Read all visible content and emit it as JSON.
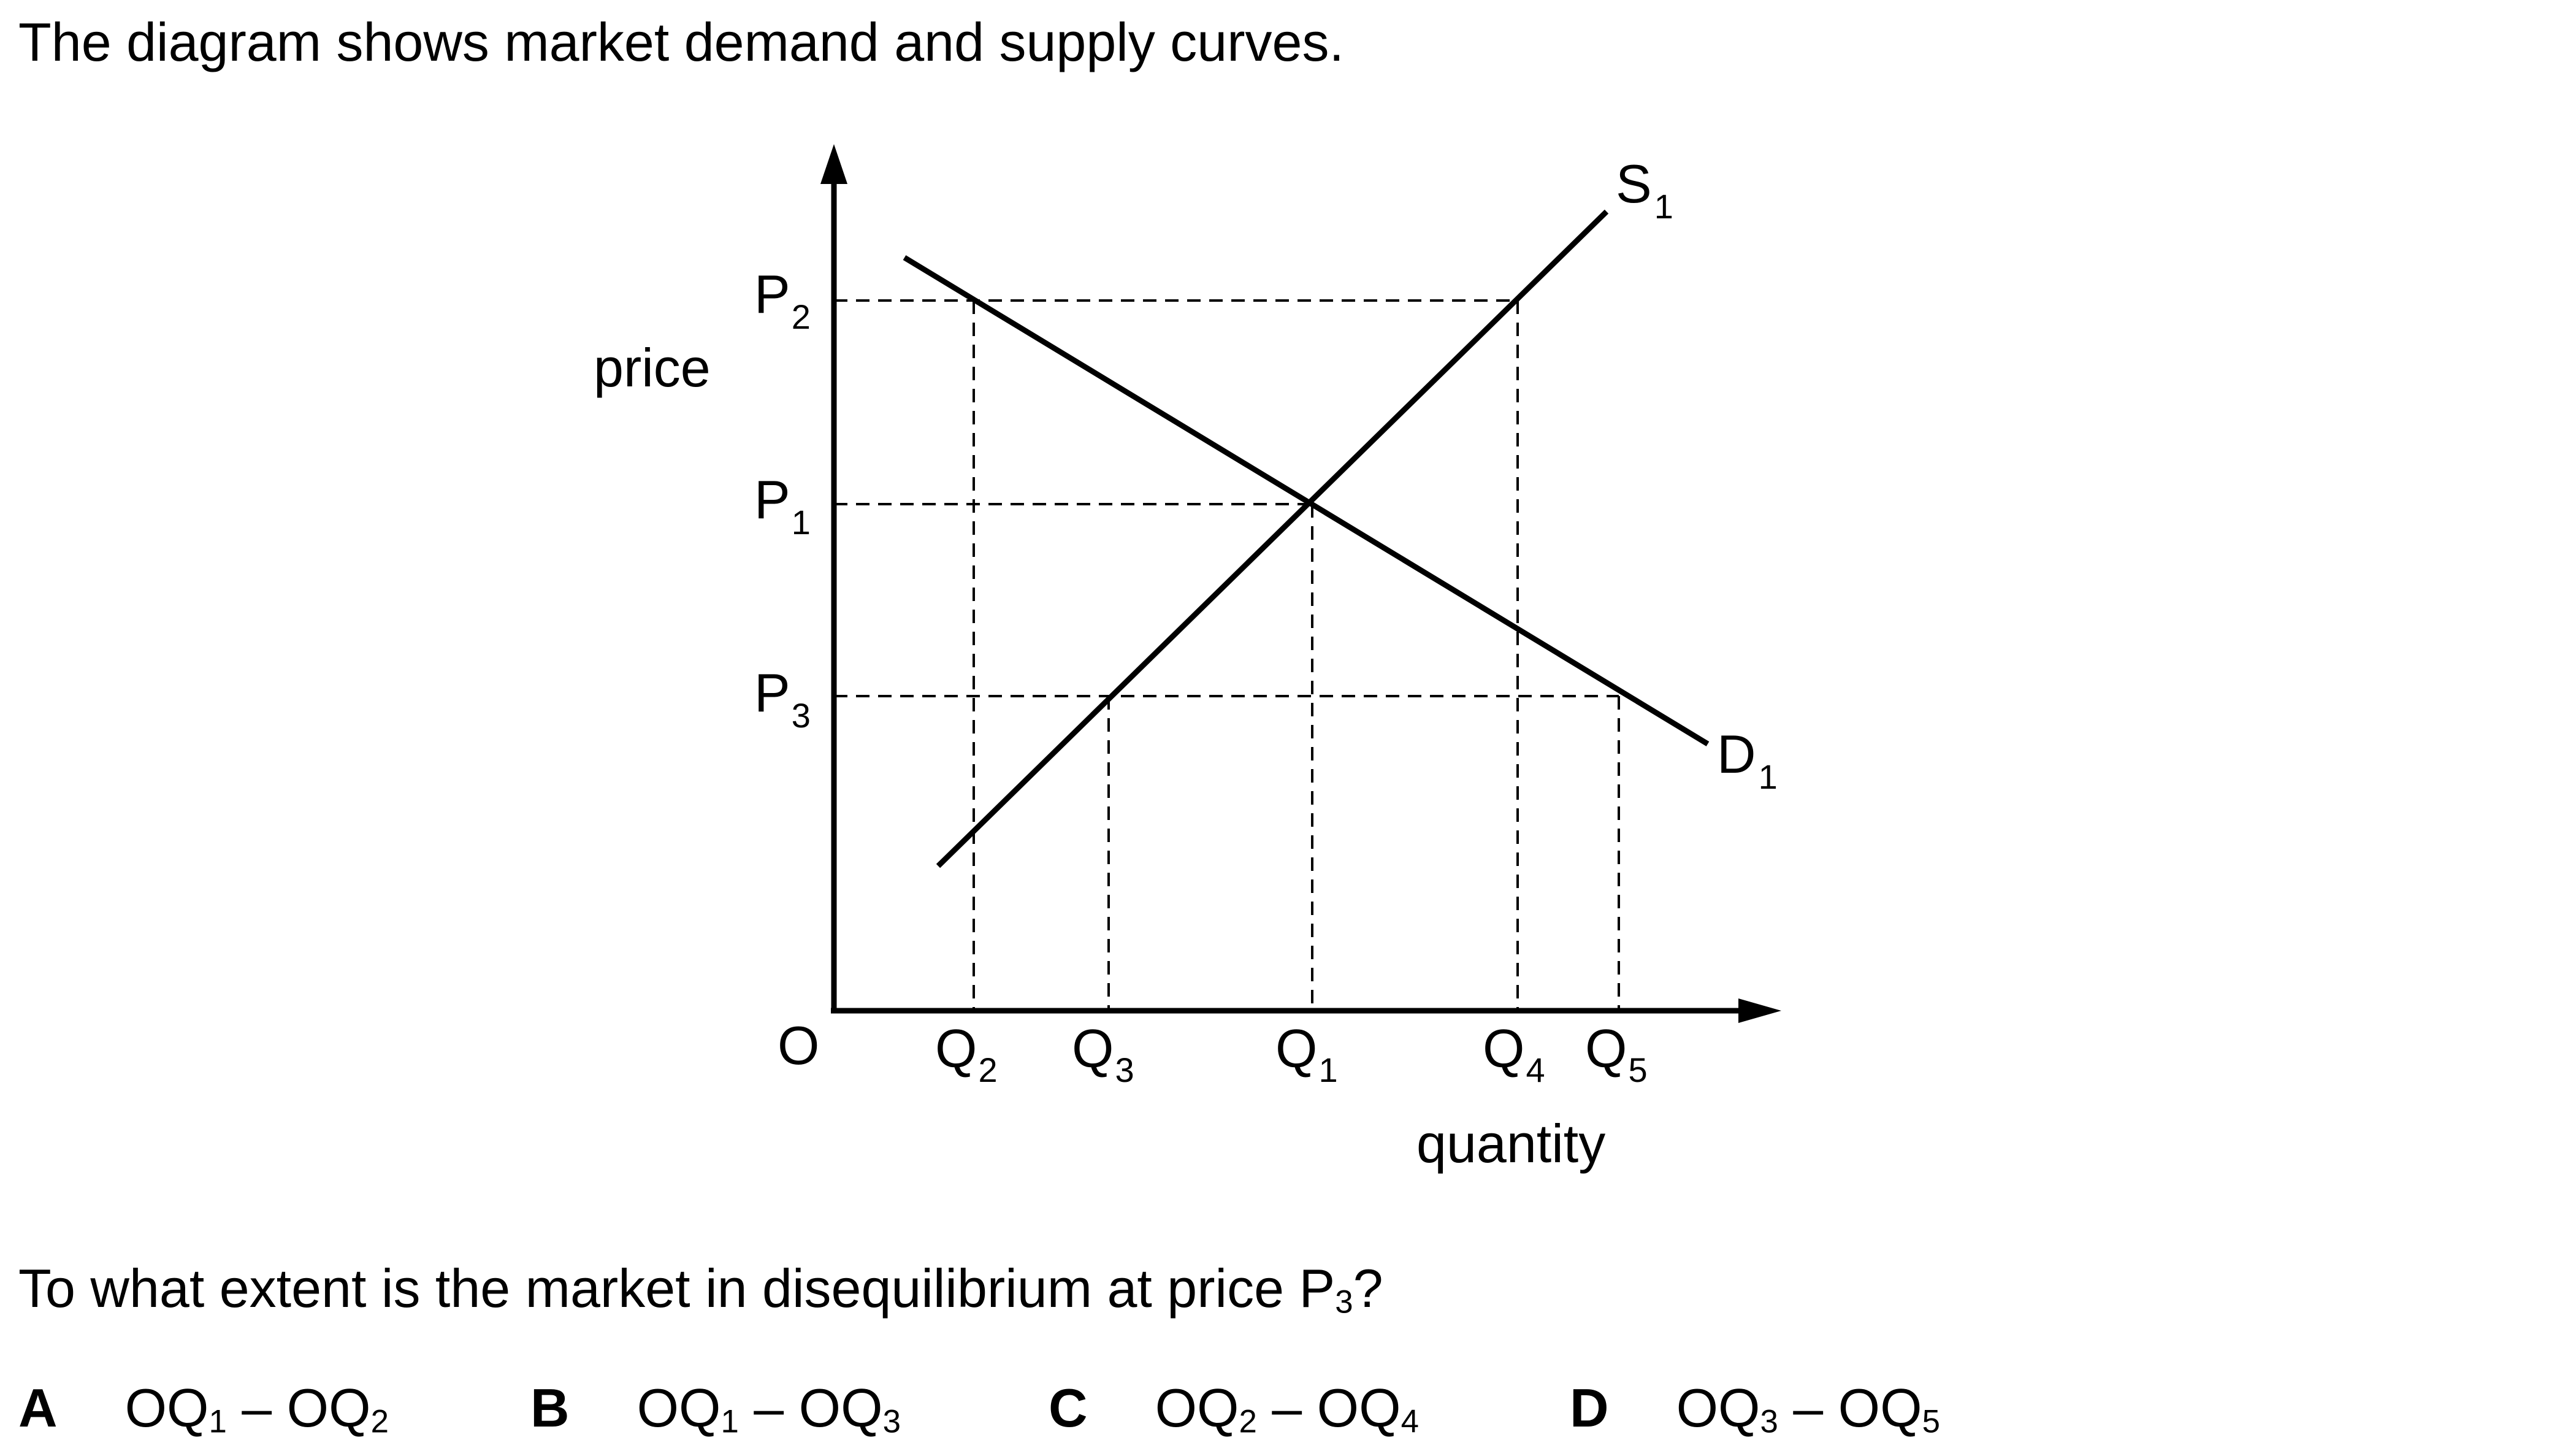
{
  "intro": "The diagram shows market demand and supply curves.",
  "diagram": {
    "y_axis_label": "price",
    "x_axis_label": "quantity",
    "origin_label": "O",
    "supply_curve": {
      "base": "S",
      "sub": "1"
    },
    "demand_curve": {
      "base": "D",
      "sub": "1"
    },
    "price_levels": [
      {
        "base": "P",
        "sub": "2"
      },
      {
        "base": "P",
        "sub": "1"
      },
      {
        "base": "P",
        "sub": "3"
      }
    ],
    "quantity_levels": [
      {
        "base": "Q",
        "sub": "2"
      },
      {
        "base": "Q",
        "sub": "3"
      },
      {
        "base": "Q",
        "sub": "1"
      },
      {
        "base": "Q",
        "sub": "4"
      },
      {
        "base": "Q",
        "sub": "5"
      }
    ]
  },
  "question": {
    "text": "To what extent is the market in disequilibrium at price P",
    "sub": "3",
    "end": "?"
  },
  "options": [
    {
      "letter": "A",
      "t1": "OQ",
      "s1": "1",
      "mid": " – OQ",
      "s2": "2"
    },
    {
      "letter": "B",
      "t1": "OQ",
      "s1": "1",
      "mid": " – OQ",
      "s2": "3"
    },
    {
      "letter": "C",
      "t1": "OQ",
      "s1": "2",
      "mid": " – OQ",
      "s2": "4"
    },
    {
      "letter": "D",
      "t1": "OQ",
      "s1": "3",
      "mid": " – OQ",
      "s2": "5"
    }
  ]
}
